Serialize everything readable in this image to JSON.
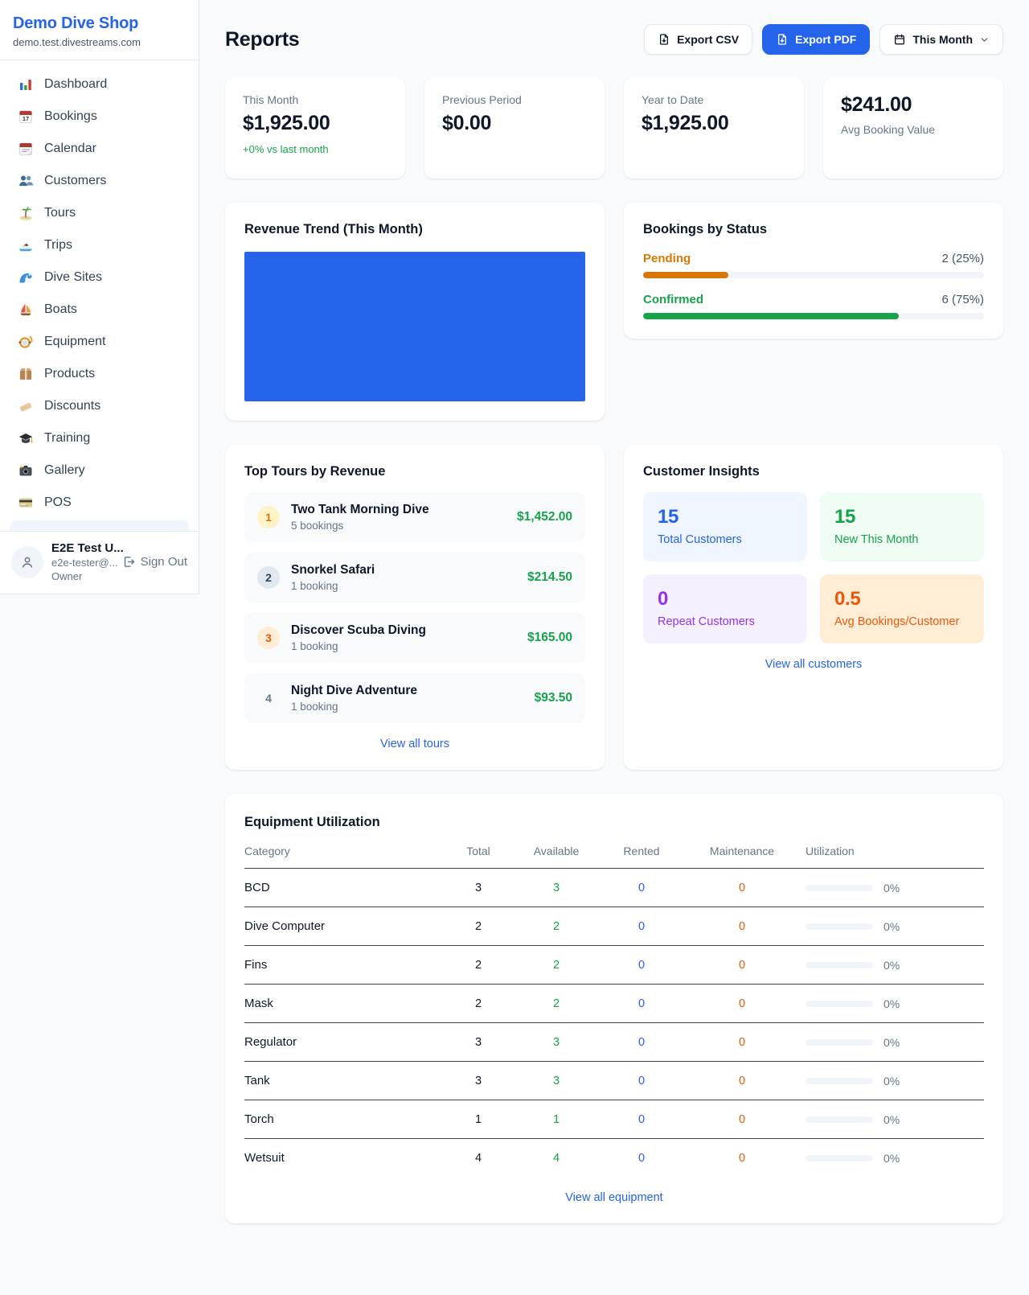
{
  "colors": {
    "brand_blue": "#2563eb",
    "chart_blue": "#2563eb",
    "green": "#16a34a",
    "orange_pending": "#d97706",
    "orange_deep": "#ea580c",
    "purple": "#9333ea",
    "page_bg": "#f8fafc"
  },
  "sidebar": {
    "brand": {
      "name": "Demo Dive Shop",
      "domain": "demo.test.divestreams.com"
    },
    "items": [
      {
        "icon": "dashboard",
        "label": "Dashboard"
      },
      {
        "icon": "bookings",
        "label": "Bookings"
      },
      {
        "icon": "calendar",
        "label": "Calendar"
      },
      {
        "icon": "customers",
        "label": "Customers"
      },
      {
        "icon": "tours",
        "label": "Tours"
      },
      {
        "icon": "trips",
        "label": "Trips"
      },
      {
        "icon": "dive-sites",
        "label": "Dive Sites"
      },
      {
        "icon": "boats",
        "label": "Boats"
      },
      {
        "icon": "equipment",
        "label": "Equipment"
      },
      {
        "icon": "products",
        "label": "Products"
      },
      {
        "icon": "discounts",
        "label": "Discounts"
      },
      {
        "icon": "training",
        "label": "Training"
      },
      {
        "icon": "gallery",
        "label": "Gallery"
      },
      {
        "icon": "pos",
        "label": "POS"
      }
    ],
    "user": {
      "name": "E2E Test U...",
      "email": "e2e-tester@...",
      "role": "Owner",
      "sign_out_label": "Sign Out"
    }
  },
  "header": {
    "title": "Reports",
    "export_csv_label": "Export CSV",
    "export_pdf_label": "Export PDF",
    "period_label": "This Month"
  },
  "stats": [
    {
      "label": "This Month",
      "value": "$1,925.00",
      "delta": "+0% vs last month",
      "value_first": false
    },
    {
      "label": "Previous Period",
      "value": "$0.00",
      "value_first": false
    },
    {
      "label": "Year to Date",
      "value": "$1,925.00",
      "value_first": false
    },
    {
      "label": "Avg Booking Value",
      "value": "$241.00",
      "value_first": true
    }
  ],
  "revenue_trend": {
    "title": "Revenue Trend (This Month)"
  },
  "chart_data": {
    "type": "bar",
    "title": "Revenue Trend (This Month)",
    "categories": [
      "This Month"
    ],
    "values": [
      1925
    ],
    "xlabel": "",
    "ylabel": "",
    "note": "single full-width solid blue bar, no axes or labels visible"
  },
  "bookings_by_status": {
    "title": "Bookings by Status",
    "rows": [
      {
        "label": "Pending",
        "value": "2 (25%)",
        "pct": 25,
        "color": "#d97706"
      },
      {
        "label": "Confirmed",
        "value": "6 (75%)",
        "pct": 75,
        "color": "#16a34a"
      }
    ]
  },
  "top_tours": {
    "title": "Top Tours by Revenue",
    "rows": [
      {
        "rank": "1",
        "name": "Two Tank Morning Dive",
        "bookings": "5 bookings",
        "amount": "$1,452.00"
      },
      {
        "rank": "2",
        "name": "Snorkel Safari",
        "bookings": "1 booking",
        "amount": "$214.50"
      },
      {
        "rank": "3",
        "name": "Discover Scuba Diving",
        "bookings": "1 booking",
        "amount": "$165.00"
      },
      {
        "rank": "4",
        "name": "Night Dive Adventure",
        "bookings": "1 booking",
        "amount": "$93.50"
      }
    ],
    "view_all": "View all tours"
  },
  "customer_insights": {
    "title": "Customer Insights",
    "tiles": [
      {
        "value": "15",
        "label": "Total Customers",
        "bg": "#eff6ff",
        "fg": "#2563eb"
      },
      {
        "value": "15",
        "label": "New This Month",
        "bg": "#f0fdf4",
        "fg": "#16a34a"
      },
      {
        "value": "0",
        "label": "Repeat Customers",
        "bg": "#f5f0fe",
        "fg": "#9333ea"
      },
      {
        "value": "0.5",
        "label": "Avg Bookings/Customer",
        "bg": "#ffedd5",
        "fg": "#ea580c"
      }
    ],
    "view_all": "View all customers"
  },
  "equipment": {
    "title": "Equipment Utilization",
    "columns": [
      "Category",
      "Total",
      "Available",
      "Rented",
      "Maintenance",
      "Utilization"
    ],
    "rows": [
      {
        "category": "BCD",
        "total": "3",
        "available": "3",
        "rented": "0",
        "maintenance": "0",
        "utilization": "0%",
        "util_pct": 0
      },
      {
        "category": "Dive Computer",
        "total": "2",
        "available": "2",
        "rented": "0",
        "maintenance": "0",
        "utilization": "0%",
        "util_pct": 0
      },
      {
        "category": "Fins",
        "total": "2",
        "available": "2",
        "rented": "0",
        "maintenance": "0",
        "utilization": "0%",
        "util_pct": 0
      },
      {
        "category": "Mask",
        "total": "2",
        "available": "2",
        "rented": "0",
        "maintenance": "0",
        "utilization": "0%",
        "util_pct": 0
      },
      {
        "category": "Regulator",
        "total": "3",
        "available": "3",
        "rented": "0",
        "maintenance": "0",
        "utilization": "0%",
        "util_pct": 0
      },
      {
        "category": "Tank",
        "total": "3",
        "available": "3",
        "rented": "0",
        "maintenance": "0",
        "utilization": "0%",
        "util_pct": 0
      },
      {
        "category": "Torch",
        "total": "1",
        "available": "1",
        "rented": "0",
        "maintenance": "0",
        "utilization": "0%",
        "util_pct": 0
      },
      {
        "category": "Wetsuit",
        "total": "4",
        "available": "4",
        "rented": "0",
        "maintenance": "0",
        "utilization": "0%",
        "util_pct": 0
      }
    ],
    "view_all": "View all equipment"
  }
}
